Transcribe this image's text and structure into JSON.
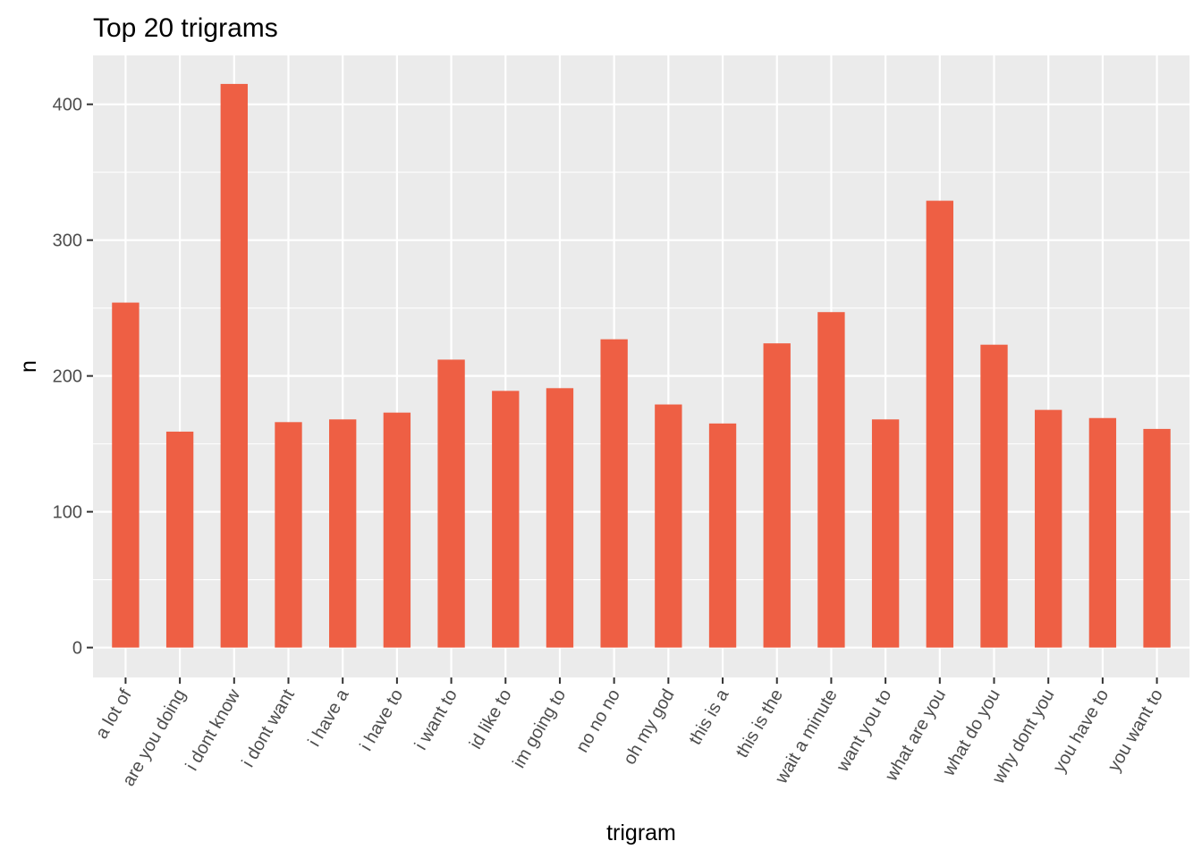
{
  "chart_data": {
    "type": "bar",
    "title": "Top 20 trigrams",
    "xlabel": "trigram",
    "ylabel": "n",
    "categories": [
      "a lot of",
      "are you doing",
      "i dont know",
      "i dont want",
      "i have a",
      "i have to",
      "i want to",
      "id like to",
      "im going to",
      "no no no",
      "oh my god",
      "this is a",
      "this is the",
      "wait a minute",
      "want you to",
      "what are you",
      "what do you",
      "why dont you",
      "you have to",
      "you want to"
    ],
    "values": [
      254,
      159,
      415,
      166,
      168,
      173,
      212,
      189,
      191,
      227,
      179,
      165,
      224,
      247,
      168,
      329,
      223,
      175,
      169,
      161
    ],
    "ylim": [
      -22,
      436
    ],
    "yticks": [
      0,
      100,
      200,
      300,
      400
    ],
    "grid": true,
    "bar_color": "#EE5F44",
    "panel_color": "#EBEBEB"
  }
}
